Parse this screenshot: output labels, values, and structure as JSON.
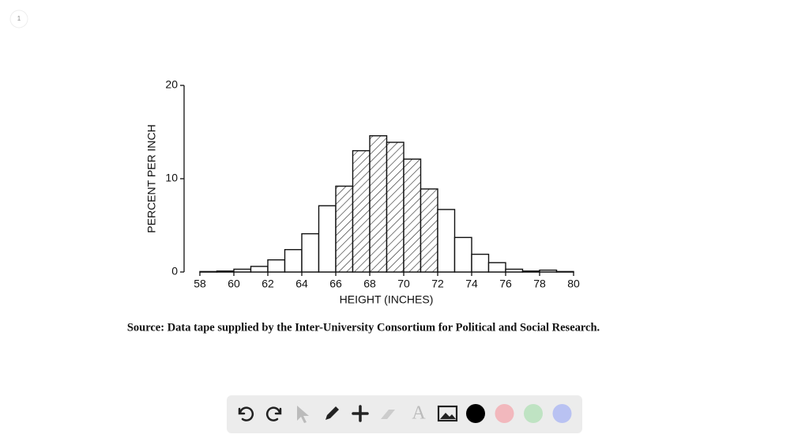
{
  "page_number": "1",
  "chart_data": {
    "type": "histogram",
    "xlabel": "HEIGHT (INCHES)",
    "ylabel": "PERCENT PER INCH",
    "bins": [
      58,
      59,
      60,
      61,
      62,
      63,
      64,
      65,
      66,
      67,
      68,
      69,
      70,
      71,
      72,
      73,
      74,
      75,
      76,
      77,
      78,
      79,
      80
    ],
    "values": [
      0.05,
      0.1,
      0.3,
      0.6,
      1.3,
      2.4,
      4.1,
      7.1,
      9.2,
      13.0,
      14.6,
      13.9,
      12.1,
      8.9,
      6.7,
      3.7,
      1.9,
      1.0,
      0.3,
      0.1,
      0.2,
      0.05
    ],
    "hatched": [
      false,
      false,
      false,
      false,
      false,
      false,
      false,
      false,
      true,
      true,
      true,
      true,
      true,
      true,
      false,
      false,
      false,
      false,
      false,
      false,
      false,
      false
    ],
    "xlim": [
      58,
      80
    ],
    "ylim": [
      0,
      20
    ],
    "xticks": [
      58,
      60,
      62,
      64,
      66,
      68,
      70,
      72,
      74,
      76,
      78,
      80
    ],
    "yticks": [
      0,
      10,
      20
    ],
    "color": "#ffffff",
    "edge_color": "#111111"
  },
  "source": "Source: Data tape supplied by the Inter-University Consortium for Political and Social Research.",
  "toolbar": {
    "colors": [
      "#000000",
      "#f2b8bd",
      "#bfe3c3",
      "#b9c2f2"
    ]
  }
}
